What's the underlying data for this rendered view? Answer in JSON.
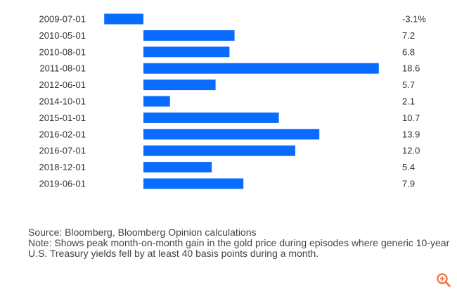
{
  "chart_data": {
    "type": "bar",
    "orientation": "horizontal",
    "categories": [
      "2009-07-01",
      "2010-05-01",
      "2010-08-01",
      "2011-08-01",
      "2012-06-01",
      "2014-10-01",
      "2015-01-01",
      "2016-02-01",
      "2016-07-01",
      "2018-12-01",
      "2019-06-01"
    ],
    "values": [
      -3.1,
      7.2,
      6.8,
      18.6,
      5.7,
      2.1,
      10.7,
      13.9,
      12.0,
      5.4,
      7.9
    ],
    "value_labels": [
      "-3.1%",
      "7.2",
      "6.8",
      "18.6",
      "5.7",
      "2.1",
      "10.7",
      "13.9",
      "12.0",
      "5.4",
      "7.9"
    ],
    "bar_color": "#0a6cff",
    "grid": false,
    "title": "",
    "xlabel": "",
    "ylabel": ""
  },
  "notes": {
    "source": "Source: Bloomberg, Bloomberg Opinion calculations",
    "note": "Note: Shows peak month-on-month gain in the gold price during episodes where generic 10-year U.S. Treasury yields fell by at least 40 basis points during a month."
  },
  "icons": {
    "zoom": "zoom-in-icon",
    "zoom_color": "#f07b4f"
  }
}
